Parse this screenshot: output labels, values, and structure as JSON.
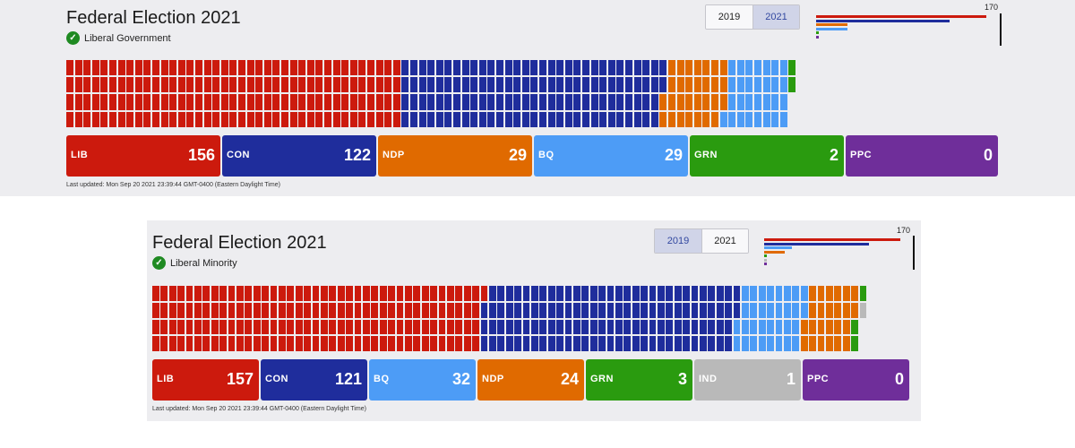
{
  "colors": {
    "LIB": "#cc1a0d",
    "CON": "#1f2d9c",
    "NDP": "#e06a00",
    "BQ": "#4d9cf6",
    "GRN": "#2a9b0f",
    "PPC": "#6f2e9a",
    "IND": "#b9b9b9"
  },
  "widgets": [
    {
      "title": "Federal Election 2021",
      "status": "Liberal Government",
      "years": [
        "2019",
        "2021"
      ],
      "active_year": "2021",
      "majority_target": "170",
      "parties": [
        {
          "abbr": "LIB",
          "seats": "156"
        },
        {
          "abbr": "CON",
          "seats": "122"
        },
        {
          "abbr": "NDP",
          "seats": "29"
        },
        {
          "abbr": "BQ",
          "seats": "29"
        },
        {
          "abbr": "GRN",
          "seats": "2"
        },
        {
          "abbr": "PPC",
          "seats": "0"
        }
      ],
      "last_updated": "Last updated: Mon Sep 20 2021 23:39:44 GMT-0400 (Eastern Daylight Time)"
    },
    {
      "title": "Federal Election 2021",
      "status": "Liberal Minority",
      "years": [
        "2019",
        "2021"
      ],
      "active_year": "2019",
      "majority_target": "170",
      "parties": [
        {
          "abbr": "LIB",
          "seats": "157"
        },
        {
          "abbr": "CON",
          "seats": "121"
        },
        {
          "abbr": "BQ",
          "seats": "32"
        },
        {
          "abbr": "NDP",
          "seats": "24"
        },
        {
          "abbr": "GRN",
          "seats": "3"
        },
        {
          "abbr": "IND",
          "seats": "1"
        },
        {
          "abbr": "PPC",
          "seats": "0"
        }
      ],
      "last_updated": "Last updated: Mon Sep 20 2021 23:39:44 GMT-0400 (Eastern Daylight Time)"
    }
  ]
}
